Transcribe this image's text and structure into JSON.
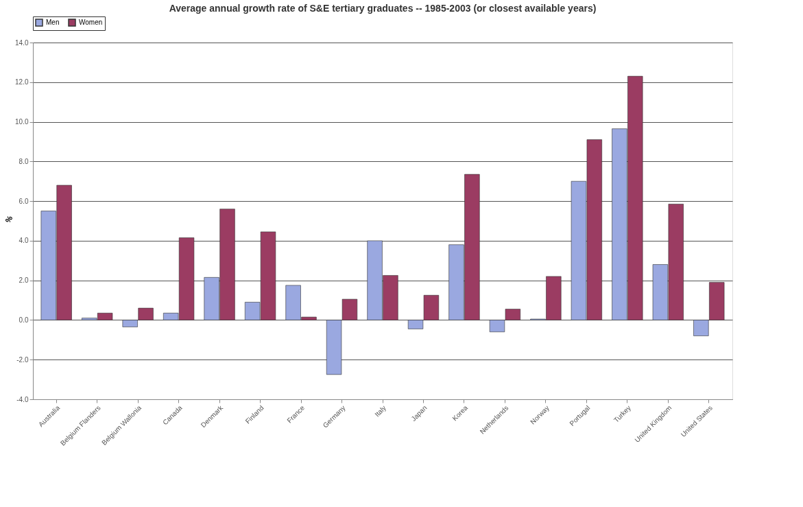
{
  "chart_data": {
    "type": "bar",
    "title": "Average annual growth rate of S&E tertiary graduates -- 1985-2003 (or closest available years)",
    "ylabel": "%",
    "categories": [
      "Australia",
      "Belgium Flanders",
      "Belgium Wallonia",
      "Canada",
      "Denmark",
      "Finland",
      "France",
      "Germany",
      "Italy",
      "Japan",
      "Korea",
      "Netherlands",
      "Norway",
      "Portugal",
      "Turkey",
      "United Kingdom",
      "United States"
    ],
    "series": [
      {
        "name": "Men",
        "color": "#9aa8e0",
        "values": [
          5.5,
          0.1,
          -0.35,
          0.35,
          2.15,
          0.9,
          1.75,
          -2.75,
          4.0,
          -0.45,
          3.8,
          -0.6,
          0.05,
          7.0,
          9.65,
          2.8,
          -0.8
        ]
      },
      {
        "name": "Women",
        "color": "#9b3c62",
        "values": [
          6.8,
          0.35,
          0.6,
          4.15,
          5.6,
          4.45,
          0.15,
          1.05,
          2.25,
          1.25,
          7.35,
          0.55,
          2.2,
          9.1,
          12.3,
          5.85,
          1.9
        ]
      }
    ],
    "ylim": [
      -4,
      14
    ],
    "yticks": [
      {
        "value": -4,
        "label": "-4.0"
      },
      {
        "value": -2,
        "label": "-2.0"
      },
      {
        "value": 0,
        "label": "0.0"
      },
      {
        "value": 2,
        "label": "2.0"
      },
      {
        "value": 4,
        "label": "4.0"
      },
      {
        "value": 6,
        "label": "6.0"
      },
      {
        "value": 8,
        "label": "8.0"
      },
      {
        "value": 10,
        "label": "10.0"
      },
      {
        "value": 12,
        "label": "12.0"
      },
      {
        "value": 14,
        "label": "14.0"
      }
    ],
    "grid": "y",
    "legend": "top"
  }
}
